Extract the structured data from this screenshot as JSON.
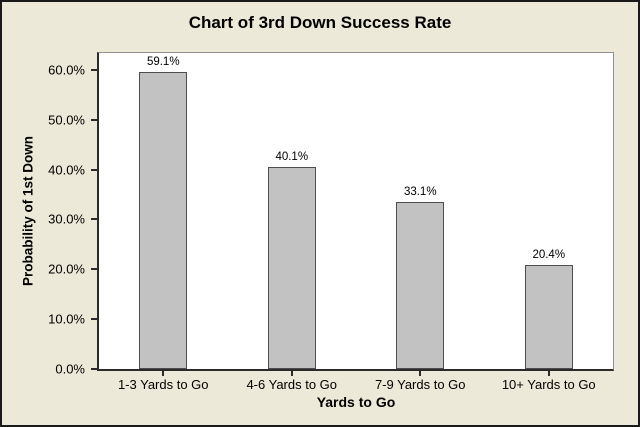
{
  "chart_data": {
    "type": "bar",
    "title": "Chart of 3rd Down Success Rate",
    "xlabel": "Yards to Go",
    "ylabel": "Probability of 1st Down",
    "categories": [
      "1-3 Yards to Go",
      "4-6 Yards to Go",
      "7-9 Yards to Go",
      "10+ Yards to Go"
    ],
    "values": [
      59.1,
      40.1,
      33.1,
      20.4
    ],
    "data_labels": [
      "59.1%",
      "40.1%",
      "33.1%",
      "20.4%"
    ],
    "yticks": [
      0,
      10,
      20,
      30,
      40,
      50,
      60
    ],
    "ytick_labels": [
      "0.0%",
      "10.0%",
      "20.0%",
      "30.0%",
      "40.0%",
      "50.0%",
      "60.0%"
    ],
    "ylim": [
      0,
      63.4
    ],
    "grid": false,
    "legend": "none",
    "colors": {
      "background": "#ece9d8",
      "plot_background": "#ffffff",
      "bar_fill": "#c2c2c2",
      "bar_border": "#4d4d4d",
      "axis": "#2b2b2b",
      "plot_border": "#8f8f8f",
      "text": "#000000",
      "frame": "#1a1a1a"
    }
  }
}
